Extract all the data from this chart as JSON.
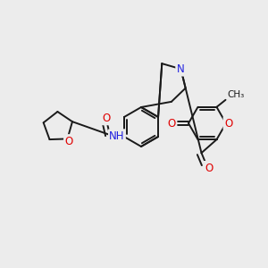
{
  "bg_color": "#ececec",
  "bond_color": "#1a1a1a",
  "bond_width": 1.4,
  "atom_colors": {
    "O": "#e00000",
    "N": "#2020e0",
    "C": "#1a1a1a"
  },
  "font_size": 8.5,
  "figsize": [
    3.0,
    3.0
  ],
  "dpi": 100
}
